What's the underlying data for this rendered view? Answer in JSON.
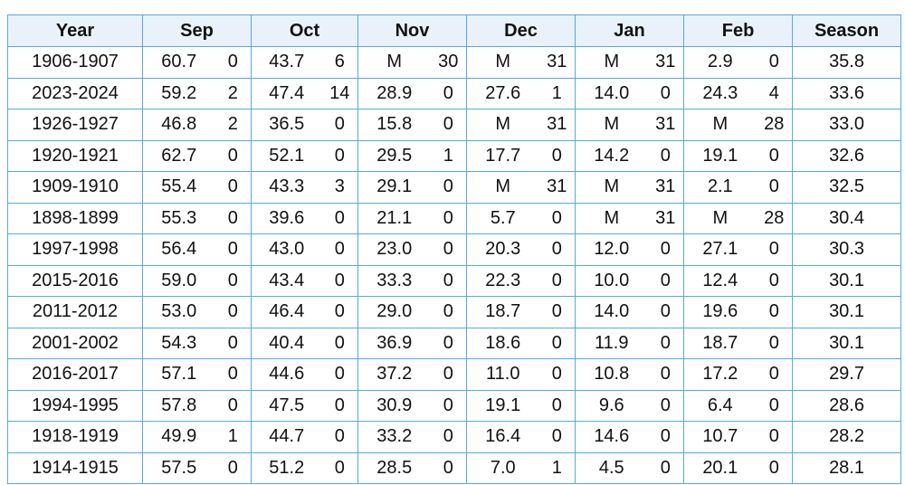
{
  "table": {
    "header": [
      "Year",
      "Sep",
      "Oct",
      "Nov",
      "Dec",
      "Jan",
      "Feb",
      "Season"
    ],
    "rows": [
      [
        "1906-1907",
        "60.7",
        "0",
        "43.7",
        "6",
        "M",
        "30",
        "M",
        "31",
        "M",
        "31",
        "2.9",
        "0",
        "35.8"
      ],
      [
        "2023-2024",
        "59.2",
        "2",
        "47.4",
        "14",
        "28.9",
        "0",
        "27.6",
        "1",
        "14.0",
        "0",
        "24.3",
        "4",
        "33.6"
      ],
      [
        "1926-1927",
        "46.8",
        "2",
        "36.5",
        "0",
        "15.8",
        "0",
        "M",
        "31",
        "M",
        "31",
        "M",
        "28",
        "33.0"
      ],
      [
        "1920-1921",
        "62.7",
        "0",
        "52.1",
        "0",
        "29.5",
        "1",
        "17.7",
        "0",
        "14.2",
        "0",
        "19.1",
        "0",
        "32.6"
      ],
      [
        "1909-1910",
        "55.4",
        "0",
        "43.3",
        "3",
        "29.1",
        "0",
        "M",
        "31",
        "M",
        "31",
        "2.1",
        "0",
        "32.5"
      ],
      [
        "1898-1899",
        "55.3",
        "0",
        "39.6",
        "0",
        "21.1",
        "0",
        "5.7",
        "0",
        "M",
        "31",
        "M",
        "28",
        "30.4"
      ],
      [
        "1997-1998",
        "56.4",
        "0",
        "43.0",
        "0",
        "23.0",
        "0",
        "20.3",
        "0",
        "12.0",
        "0",
        "27.1",
        "0",
        "30.3"
      ],
      [
        "2015-2016",
        "59.0",
        "0",
        "43.4",
        "0",
        "33.3",
        "0",
        "22.3",
        "0",
        "10.0",
        "0",
        "12.4",
        "0",
        "30.1"
      ],
      [
        "2011-2012",
        "53.0",
        "0",
        "46.4",
        "0",
        "29.0",
        "0",
        "18.7",
        "0",
        "14.0",
        "0",
        "19.6",
        "0",
        "30.1"
      ],
      [
        "2001-2002",
        "54.3",
        "0",
        "40.4",
        "0",
        "36.9",
        "0",
        "18.6",
        "0",
        "11.9",
        "0",
        "18.7",
        "0",
        "30.1"
      ],
      [
        "2016-2017",
        "57.1",
        "0",
        "44.6",
        "0",
        "37.2",
        "0",
        "11.0",
        "0",
        "10.8",
        "0",
        "17.2",
        "0",
        "29.7"
      ],
      [
        "1994-1995",
        "57.8",
        "0",
        "47.5",
        "0",
        "30.9",
        "0",
        "19.1",
        "0",
        "9.6",
        "0",
        "6.4",
        "0",
        "28.6"
      ],
      [
        "1918-1919",
        "49.9",
        "1",
        "44.7",
        "0",
        "33.2",
        "0",
        "16.4",
        "0",
        "14.6",
        "0",
        "10.7",
        "0",
        "28.2"
      ],
      [
        "1914-1915",
        "57.5",
        "0",
        "51.2",
        "0",
        "28.5",
        "0",
        "7.0",
        "1",
        "4.5",
        "0",
        "20.1",
        "0",
        "28.1"
      ]
    ]
  }
}
